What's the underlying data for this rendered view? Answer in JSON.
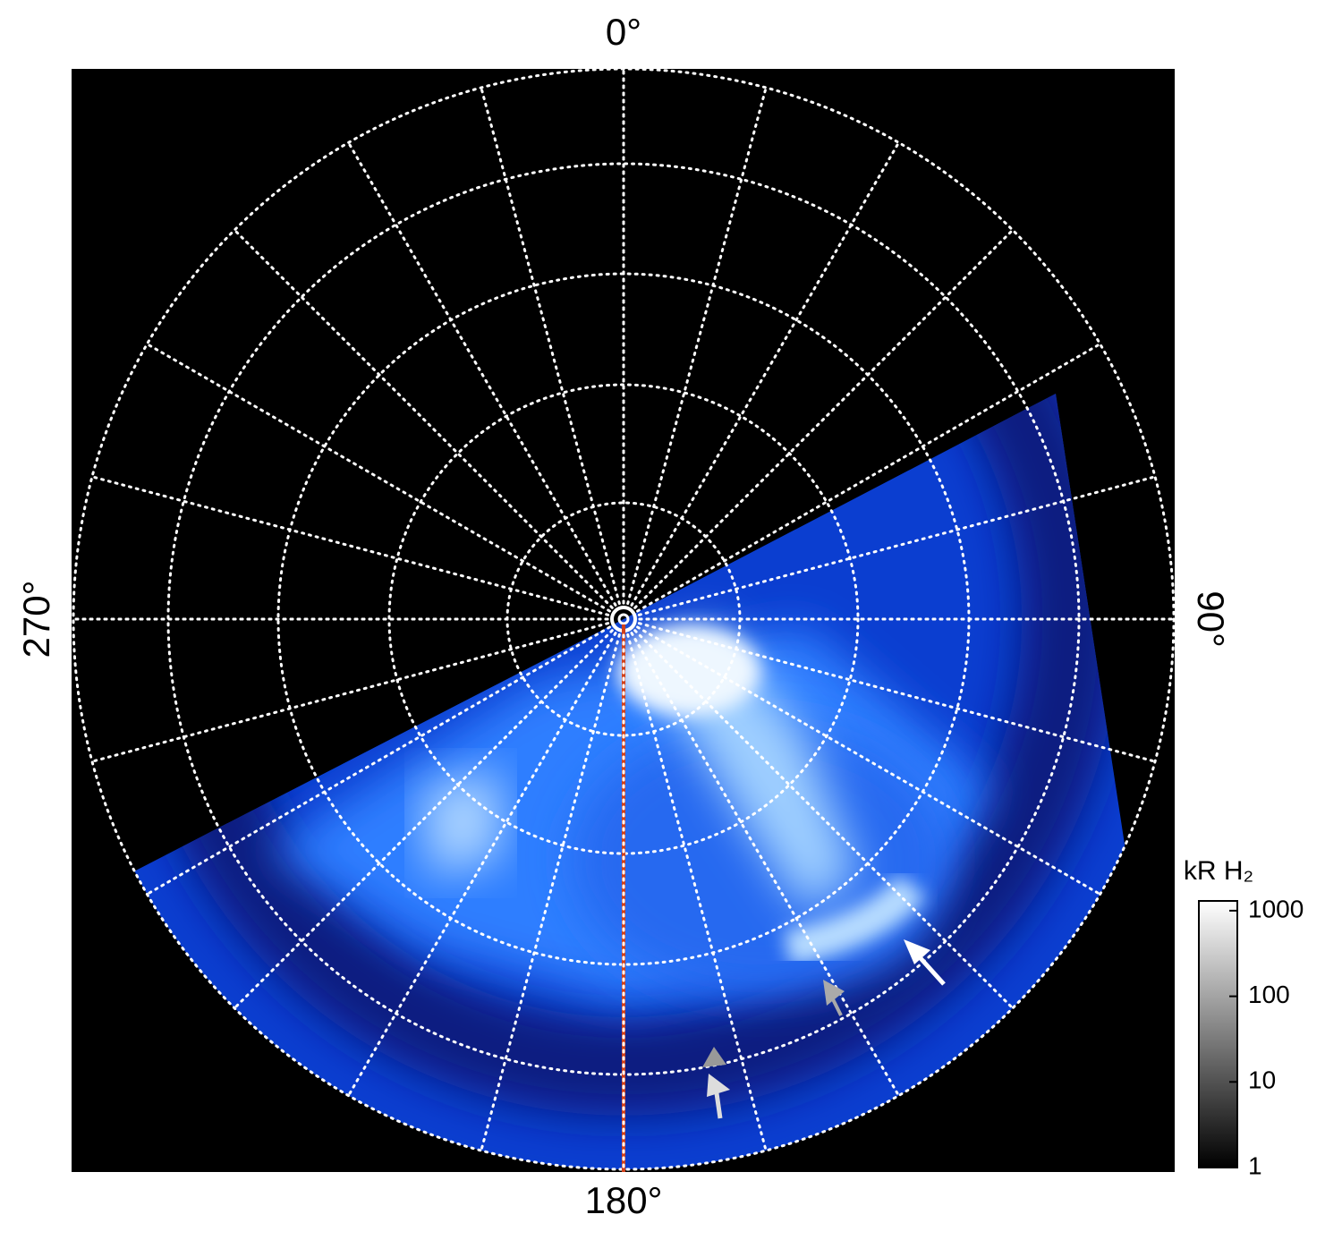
{
  "chart_data": {
    "type": "polar-image",
    "angle_ticks": [
      {
        "value": 0,
        "label": "0°"
      },
      {
        "value": 90,
        "label": "90°"
      },
      {
        "value": 180,
        "label": "180°"
      },
      {
        "value": 270,
        "label": "270°"
      }
    ],
    "colorbar": {
      "label": "kR H₂",
      "ylim": [
        1,
        1300
      ],
      "yticks": [
        1,
        10,
        100,
        1000
      ],
      "log": true
    }
  }
}
